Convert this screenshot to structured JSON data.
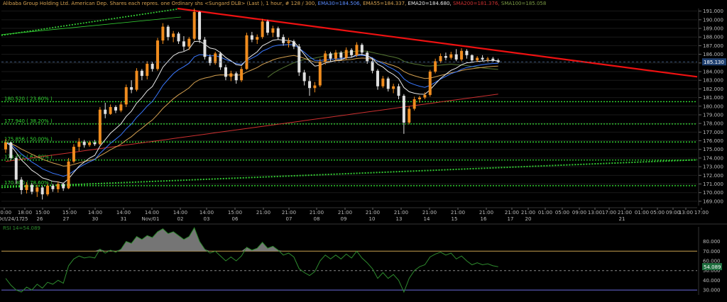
{
  "header": {
    "instrument": "Alibaba Group Holding Ltd. American Dep. Shares each repres. one Ordinary shs <Sungard DLB> (Last ), 1 hour, # 128 / 300,",
    "ema30": "EMA30=184.506,",
    "ema55": "EMA55=184.337,",
    "ema20": "EMA20=184.680,",
    "sma200": "SMA200=181.376,",
    "sma100": "SMA100=185.058"
  },
  "colors": {
    "background": "#000000",
    "bull": "#f08c1e",
    "bear": "#e0e0e0",
    "fib": "#33dd33",
    "trend_up": "#33cc33",
    "trend_down": "#ee1111",
    "ema20": "#e8e8e8",
    "ema30": "#3a78ff",
    "ema55": "#d4a050",
    "sma200": "#cc3030",
    "sma100": "#557733",
    "rsi": "#2e8b2e",
    "rsi_upper": "#c8a050",
    "rsi_lower": "#6a6adc",
    "last_tag": "#1f3f6f"
  },
  "chart_data": {
    "type": "candlestick",
    "title": "Alibaba Group Holding Ltd. American Dep. Shares each repres. one Ordinary shs <Sungard DLB> (Last ), 1 hour",
    "ylim": [
      168.5,
      191.3
    ],
    "y_ticks": [
      "191.000",
      "190.000",
      "189.000",
      "188.000",
      "187.000",
      "186.000",
      "185.000",
      "184.000",
      "183.000",
      "182.000",
      "181.000",
      "180.000",
      "179.000",
      "178.000",
      "177.000",
      "176.000",
      "175.000",
      "174.000",
      "173.000",
      "172.000",
      "171.000",
      "170.000",
      "169.000"
    ],
    "last_price": "185.130",
    "x_axis_top": [
      "20:00",
      "18:00",
      "15:00",
      "15:00",
      "14:00",
      "14:00",
      "14:00",
      "14:00",
      "14:00",
      "15:00",
      "21:00",
      "21:00",
      "21:00",
      "21:00",
      "21:00",
      "21:00",
      "21:00",
      "21:00",
      "21:00",
      "21:00",
      "21:00",
      "01:00",
      "05:00",
      "09:00",
      "13:00",
      "17:00",
      "21:00",
      "01:00",
      "05:00",
      "09:00",
      "13:00",
      "17:00",
      "21:00"
    ],
    "x_axis_bottom": [
      "Oct/24/17",
      "25",
      "26",
      "27",
      "30",
      "31",
      "Nov/01",
      "02",
      "03",
      "06",
      "07",
      "08",
      "09",
      "10",
      "13",
      "14",
      "15",
      "16",
      "17",
      "20",
      "21"
    ],
    "fib_levels": [
      {
        "label": "180.520 ( 23.60% )",
        "value": 180.52
      },
      {
        "label": "177.940 ( 38.20% )",
        "value": 177.94
      },
      {
        "label": "175.856 ( 50.00% )",
        "value": 175.856
      },
      {
        "label": "173.772 ( 61.80% )",
        "value": 173.772
      },
      {
        "label": "170.800 ( 78.60% )",
        "value": 170.8
      }
    ],
    "trendlines": [
      {
        "name": "descending resistance",
        "points": [
          [
            "Nov/02 14:00",
            191.3
          ],
          [
            "Nov/21",
            183.4
          ]
        ]
      },
      {
        "name": "upper channel",
        "points": [
          [
            "Oct/24",
            188.2
          ],
          [
            "Nov/01",
            191.3
          ]
        ]
      },
      {
        "name": "ascending support",
        "points": [
          [
            "Oct/24",
            170.6
          ],
          [
            "Nov/21",
            173.8
          ]
        ]
      }
    ],
    "candles": [
      [
        175.0,
        176.2,
        174.6,
        175.8
      ],
      [
        175.8,
        175.9,
        173.8,
        174.0
      ],
      [
        174.0,
        174.2,
        171.0,
        171.5
      ],
      [
        171.5,
        171.8,
        169.8,
        170.3
      ],
      [
        170.3,
        171.2,
        169.9,
        170.9
      ],
      [
        170.9,
        171.1,
        169.8,
        170.1
      ],
      [
        170.1,
        170.9,
        169.5,
        170.6
      ],
      [
        170.6,
        170.8,
        169.2,
        169.8
      ],
      [
        169.8,
        171.0,
        169.6,
        170.8
      ],
      [
        170.8,
        171.0,
        170.1,
        170.4
      ],
      [
        170.4,
        171.3,
        170.0,
        171.0
      ],
      [
        171.0,
        171.1,
        170.2,
        170.5
      ],
      [
        170.5,
        174.0,
        170.4,
        173.6
      ],
      [
        173.6,
        175.6,
        173.4,
        175.3
      ],
      [
        175.3,
        176.3,
        174.8,
        175.9
      ],
      [
        175.9,
        176.1,
        175.2,
        175.5
      ],
      [
        175.5,
        176.0,
        175.3,
        175.8
      ],
      [
        175.8,
        176.1,
        175.4,
        175.6
      ],
      [
        175.6,
        179.9,
        175.5,
        179.6
      ],
      [
        179.6,
        180.4,
        178.6,
        179.1
      ],
      [
        179.1,
        180.2,
        179.0,
        179.9
      ],
      [
        179.9,
        180.1,
        179.2,
        179.5
      ],
      [
        179.5,
        180.5,
        179.3,
        180.2
      ],
      [
        180.2,
        182.5,
        179.9,
        182.2
      ],
      [
        182.2,
        183.0,
        181.5,
        181.9
      ],
      [
        181.9,
        184.4,
        181.7,
        184.1
      ],
      [
        184.1,
        184.3,
        183.0,
        183.5
      ],
      [
        183.5,
        185.2,
        183.1,
        184.9
      ],
      [
        184.9,
        185.1,
        184.0,
        184.3
      ],
      [
        184.3,
        187.9,
        184.1,
        187.6
      ],
      [
        187.6,
        189.6,
        187.2,
        189.2
      ],
      [
        189.2,
        189.4,
        187.6,
        188.0
      ],
      [
        188.0,
        188.7,
        187.4,
        188.4
      ],
      [
        188.4,
        188.6,
        187.2,
        187.5
      ],
      [
        187.5,
        188.1,
        186.4,
        186.9
      ],
      [
        186.9,
        188.0,
        186.5,
        187.8
      ],
      [
        187.8,
        191.3,
        187.6,
        190.9
      ],
      [
        190.9,
        191.0,
        187.3,
        187.7
      ],
      [
        187.7,
        188.0,
        185.4,
        185.7
      ],
      [
        185.7,
        186.0,
        184.7,
        185.0
      ],
      [
        185.0,
        186.3,
        184.8,
        186.1
      ],
      [
        186.1,
        186.3,
        184.2,
        184.5
      ],
      [
        184.5,
        184.8,
        183.0,
        183.4
      ],
      [
        183.4,
        184.1,
        182.9,
        183.8
      ],
      [
        183.8,
        184.0,
        182.6,
        183.0
      ],
      [
        183.0,
        184.6,
        182.8,
        184.3
      ],
      [
        184.3,
        188.5,
        184.2,
        188.2
      ],
      [
        188.2,
        188.6,
        187.4,
        187.7
      ],
      [
        187.7,
        188.3,
        187.2,
        188.0
      ],
      [
        188.0,
        190.1,
        187.8,
        189.8
      ],
      [
        189.8,
        190.0,
        188.2,
        188.5
      ],
      [
        188.5,
        189.3,
        188.0,
        189.0
      ],
      [
        189.0,
        189.2,
        187.7,
        188.0
      ],
      [
        188.0,
        188.3,
        187.0,
        187.3
      ],
      [
        187.3,
        187.9,
        186.8,
        187.5
      ],
      [
        187.5,
        187.7,
        186.6,
        186.9
      ],
      [
        186.9,
        187.2,
        183.5,
        183.9
      ],
      [
        183.9,
        184.2,
        182.4,
        182.9
      ],
      [
        182.9,
        183.5,
        181.2,
        182.1
      ],
      [
        182.1,
        182.8,
        181.6,
        182.4
      ],
      [
        182.4,
        185.5,
        182.2,
        185.1
      ],
      [
        185.1,
        186.4,
        184.8,
        186.1
      ],
      [
        186.1,
        186.3,
        185.1,
        185.5
      ],
      [
        185.5,
        186.5,
        185.2,
        186.2
      ],
      [
        186.2,
        186.4,
        185.3,
        185.6
      ],
      [
        185.6,
        186.8,
        185.4,
        186.5
      ],
      [
        186.5,
        186.7,
        185.6,
        185.9
      ],
      [
        185.9,
        187.4,
        185.7,
        187.1
      ],
      [
        187.1,
        187.3,
        185.9,
        186.2
      ],
      [
        186.2,
        186.4,
        184.9,
        185.2
      ],
      [
        185.2,
        185.6,
        183.8,
        184.1
      ],
      [
        184.1,
        184.3,
        181.9,
        182.3
      ],
      [
        182.3,
        183.5,
        182.1,
        183.2
      ],
      [
        183.2,
        183.4,
        181.7,
        182.0
      ],
      [
        182.0,
        182.6,
        181.5,
        182.3
      ],
      [
        182.3,
        182.6,
        180.8,
        181.2
      ],
      [
        181.2,
        181.4,
        176.8,
        178.1
      ],
      [
        178.1,
        180.0,
        177.9,
        179.7
      ],
      [
        179.7,
        181.1,
        179.5,
        180.8
      ],
      [
        180.8,
        181.2,
        180.4,
        181.0
      ],
      [
        181.0,
        181.6,
        180.8,
        181.3
      ],
      [
        181.3,
        184.2,
        181.1,
        184.0
      ],
      [
        184.0,
        185.5,
        183.8,
        185.2
      ],
      [
        185.2,
        186.1,
        185.0,
        185.8
      ],
      [
        185.8,
        186.2,
        185.3,
        185.6
      ],
      [
        185.6,
        186.3,
        185.4,
        186.0
      ],
      [
        186.0,
        186.6,
        185.2,
        185.4
      ],
      [
        185.4,
        186.7,
        185.2,
        186.4
      ],
      [
        186.4,
        186.6,
        185.5,
        185.9
      ],
      [
        185.9,
        186.0,
        185.1,
        185.3
      ],
      [
        185.3,
        185.8,
        185.1,
        185.6
      ],
      [
        185.6,
        185.9,
        185.2,
        185.4
      ],
      [
        185.4,
        185.7,
        185.1,
        185.5
      ],
      [
        185.5,
        185.7,
        185.1,
        185.3
      ],
      [
        185.3,
        185.5,
        185.0,
        185.1
      ]
    ],
    "rsi": {
      "label": "RSI 14=54.089",
      "value": "54.089",
      "ylim": [
        25,
        95
      ],
      "y_ticks": [
        "80.000",
        "70.000",
        "60.000",
        "50.000",
        "40.000",
        "30.000"
      ],
      "levels": [
        70,
        50,
        30
      ],
      "values": [
        42,
        35,
        30,
        28,
        33,
        30,
        36,
        32,
        38,
        36,
        40,
        37,
        55,
        62,
        65,
        63,
        64,
        63,
        72,
        68,
        71,
        69,
        72,
        80,
        78,
        85,
        82,
        86,
        84,
        90,
        93,
        88,
        90,
        86,
        82,
        85,
        94,
        80,
        72,
        68,
        70,
        65,
        60,
        64,
        60,
        65,
        74,
        71,
        73,
        79,
        73,
        75,
        71,
        66,
        68,
        64,
        52,
        48,
        45,
        49,
        60,
        66,
        62,
        66,
        62,
        67,
        63,
        70,
        63,
        58,
        52,
        42,
        48,
        42,
        46,
        40,
        28,
        42,
        50,
        54,
        56,
        64,
        67,
        69,
        66,
        68,
        62,
        65,
        60,
        56,
        58,
        56,
        57,
        55,
        54
      ]
    }
  }
}
